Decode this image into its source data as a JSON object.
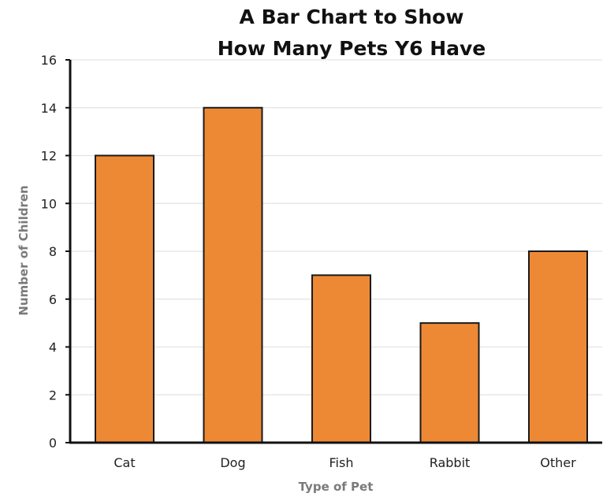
{
  "chart_data": {
    "type": "bar",
    "title_lines": [
      "A Bar Chart to Show",
      "How Many Pets Y6 Have"
    ],
    "xlabel": "Type of Pet",
    "ylabel": "Number of Children",
    "categories": [
      "Cat",
      "Dog",
      "Fish",
      "Rabbit",
      "Other"
    ],
    "values": [
      12,
      14,
      7,
      5,
      8
    ],
    "ylim": [
      0,
      16
    ],
    "yticks": [
      "0",
      "2",
      "4",
      "6",
      "8",
      "10",
      "12",
      "14",
      "16"
    ],
    "grid": true,
    "legend": "none",
    "colors": {
      "bar_fill": "#ED8935",
      "bar_stroke": "#1a1a1a",
      "axis": "#111111",
      "grid": "#e3e3e3"
    }
  }
}
